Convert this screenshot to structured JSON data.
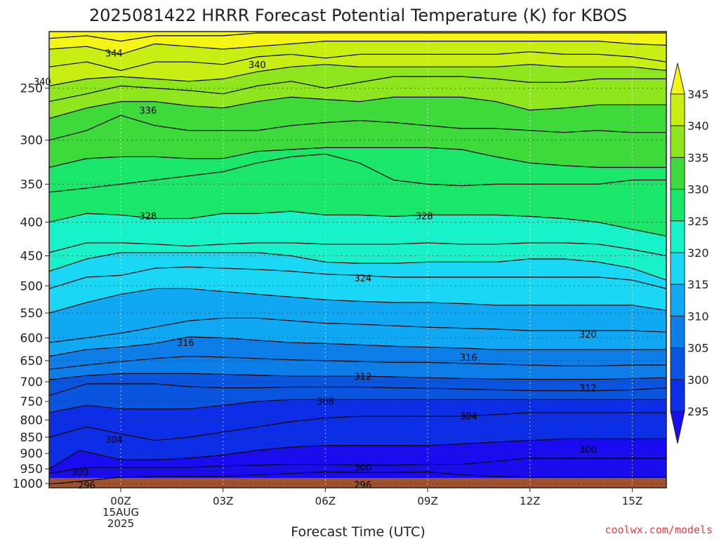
{
  "chart_data": {
    "type": "heatmap",
    "title": "2025081422 HRRR Forecast Potential Temperature (K) for KBOS",
    "xlabel": "Forecast Time (UTC)",
    "ylabel": "",
    "credit": "coolwx.com/models",
    "x_ticks": [
      {
        "hour": 0,
        "label": "00Z",
        "sub1": "15AUG",
        "sub2": "2025"
      },
      {
        "hour": 3,
        "label": "03Z"
      },
      {
        "hour": 6,
        "label": "06Z"
      },
      {
        "hour": 9,
        "label": "09Z"
      },
      {
        "hour": 12,
        "label": "12Z"
      },
      {
        "hour": 15,
        "label": "15Z"
      }
    ],
    "xlim": [
      -2.1,
      16
    ],
    "y_axis": "pressure (hPa), log scale, reversed",
    "ylim": [
      1015,
      205
    ],
    "y_ticks": [
      250,
      300,
      350,
      400,
      450,
      500,
      550,
      600,
      650,
      700,
      750,
      800,
      850,
      900,
      950,
      1000
    ],
    "colorbar": {
      "levels": [
        295,
        300,
        305,
        310,
        315,
        320,
        325,
        330,
        335,
        340,
        345
      ],
      "colors": [
        "#1a0cf0",
        "#0b2ee6",
        "#0a55e0",
        "#0d7ee8",
        "#10a8f2",
        "#19d7f5",
        "#17f2c8",
        "#1ae66a",
        "#3ed93a",
        "#8fe61e",
        "#c8ef14",
        "#f5f515"
      ],
      "extend": "both"
    },
    "ground_color": "#a0522d",
    "contour_labels": [
      {
        "value": "344",
        "hour": -0.2,
        "p": 221
      },
      {
        "value": "340",
        "hour": 4.0,
        "p": 230
      },
      {
        "value": "340",
        "hour": -2.3,
        "p": 244
      },
      {
        "value": "336",
        "hour": 0.8,
        "p": 270
      },
      {
        "value": "328",
        "hour": 0.8,
        "p": 391
      },
      {
        "value": "328",
        "hour": 8.9,
        "p": 391
      },
      {
        "value": "324",
        "hour": 7.1,
        "p": 486
      },
      {
        "value": "320",
        "hour": 13.7,
        "p": 592
      },
      {
        "value": "316",
        "hour": 1.9,
        "p": 610
      },
      {
        "value": "316",
        "hour": 10.2,
        "p": 642
      },
      {
        "value": "312",
        "hour": 7.1,
        "p": 686
      },
      {
        "value": "312",
        "hour": 13.7,
        "p": 715
      },
      {
        "value": "308",
        "hour": 6.0,
        "p": 749
      },
      {
        "value": "304",
        "hour": 10.2,
        "p": 789
      },
      {
        "value": "304",
        "hour": -0.2,
        "p": 857
      },
      {
        "value": "300",
        "hour": 13.7,
        "p": 887
      },
      {
        "value": "300",
        "hour": 7.1,
        "p": 944
      },
      {
        "value": "300",
        "hour": -1.2,
        "p": 960
      },
      {
        "value": "296",
        "hour": 7.1,
        "p": 1004
      },
      {
        "value": "296",
        "hour": -1.0,
        "p": 1005
      }
    ],
    "contours": [
      {
        "x": [
          -2.1,
          -1,
          0,
          1,
          2,
          3,
          4,
          5,
          6,
          7,
          8,
          9,
          10,
          11,
          12,
          13,
          14,
          15,
          16
        ],
        "p": [
          1002,
          990,
          978,
          975,
          975,
          975,
          970,
          965,
          960,
          962,
          962,
          960,
          970,
          975,
          978,
          978,
          978,
          978,
          978
        ]
      },
      {
        "x": [
          -2.1,
          -1,
          0,
          1,
          2,
          3,
          4,
          5,
          6,
          7,
          8,
          9,
          10,
          11,
          12,
          13,
          14,
          15,
          16
        ],
        "p": [
          965,
          945,
          945,
          945,
          945,
          940,
          938,
          935,
          935,
          938,
          938,
          935,
          935,
          925,
          915,
          915,
          915,
          915,
          915
        ]
      },
      {
        "x": [
          -2.1,
          -1.2,
          -1,
          0,
          1,
          2,
          3,
          4,
          5,
          6,
          7,
          8,
          9,
          10,
          11,
          12,
          13,
          14,
          15,
          16
        ],
        "p": [
          950,
          890,
          895,
          920,
          920,
          915,
          905,
          890,
          880,
          875,
          875,
          875,
          875,
          870,
          865,
          860,
          855,
          855,
          855,
          855
        ]
      },
      {
        "x": [
          -2.1,
          -1,
          0,
          1,
          2,
          3,
          4,
          5,
          6,
          7,
          8,
          9,
          10,
          11,
          12,
          13,
          14,
          15,
          16
        ],
        "p": [
          850,
          820,
          840,
          860,
          850,
          835,
          820,
          805,
          795,
          790,
          790,
          790,
          790,
          785,
          780,
          780,
          780,
          780,
          780
        ]
      },
      {
        "x": [
          -2.1,
          -1,
          0,
          1,
          2,
          3,
          4,
          5,
          6,
          7,
          8,
          9,
          10,
          11,
          12,
          13,
          14,
          15,
          16
        ],
        "p": [
          780,
          760,
          770,
          770,
          770,
          760,
          750,
          745,
          745,
          745,
          745,
          745,
          745,
          745,
          745,
          745,
          745,
          745,
          745
        ]
      },
      {
        "x": [
          -2.1,
          -1,
          0,
          1,
          2,
          3,
          4,
          5,
          6,
          7,
          8,
          9,
          10,
          11,
          12,
          13,
          14,
          15,
          16
        ],
        "p": [
          735,
          705,
          705,
          705,
          712,
          715,
          715,
          713,
          713,
          713,
          715,
          716,
          718,
          720,
          722,
          722,
          722,
          720,
          715
        ]
      },
      {
        "x": [
          -2.1,
          -1,
          0,
          1,
          2,
          3,
          4,
          5,
          6,
          7,
          8,
          9,
          10,
          11,
          12,
          13,
          14,
          15,
          16
        ],
        "p": [
          695,
          685,
          680,
          680,
          680,
          682,
          684,
          686,
          686,
          686,
          688,
          690,
          692,
          693,
          694,
          694,
          694,
          692,
          690
        ]
      },
      {
        "x": [
          -2.1,
          -1,
          0,
          1,
          2,
          3,
          4,
          5,
          6,
          7,
          8,
          9,
          10,
          11,
          12,
          13,
          14,
          15,
          16
        ],
        "p": [
          670,
          660,
          652,
          645,
          640,
          642,
          645,
          648,
          650,
          652,
          654,
          654,
          656,
          658,
          660,
          662,
          662,
          660,
          660
        ]
      },
      {
        "x": [
          -2.1,
          -1,
          0,
          1,
          2,
          3,
          4,
          5,
          6,
          7,
          8,
          9,
          10,
          11,
          12,
          13,
          14,
          15,
          16
        ],
        "p": [
          640,
          625,
          620,
          612,
          598,
          600,
          605,
          610,
          612,
          615,
          618,
          620,
          622,
          625,
          625,
          625,
          625,
          625,
          625
        ]
      },
      {
        "x": [
          -2.1,
          -1,
          0,
          1,
          2,
          3,
          4,
          5,
          6,
          7,
          8,
          9,
          10,
          11,
          12,
          13,
          14,
          15,
          16
        ],
        "p": [
          610,
          600,
          590,
          578,
          565,
          560,
          560,
          565,
          570,
          572,
          575,
          578,
          580,
          582,
          585,
          585,
          585,
          585,
          588
        ]
      },
      {
        "x": [
          -2.1,
          -1,
          0,
          1,
          2,
          3,
          4,
          5,
          6,
          7,
          8,
          9,
          10,
          11,
          12,
          13,
          14,
          15,
          16
        ],
        "p": [
          550,
          530,
          515,
          505,
          505,
          510,
          515,
          520,
          525,
          528,
          530,
          530,
          532,
          535,
          535,
          535,
          535,
          535,
          545
        ]
      },
      {
        "x": [
          -2.1,
          -1,
          0,
          1,
          2,
          3,
          4,
          5,
          6,
          7,
          8,
          9,
          10,
          11,
          12,
          13,
          14,
          15,
          16
        ],
        "p": [
          505,
          485,
          482,
          470,
          468,
          470,
          472,
          475,
          480,
          482,
          485,
          485,
          485,
          485,
          485,
          485,
          485,
          490,
          505
        ]
      },
      {
        "x": [
          -2.1,
          -1,
          0,
          1,
          2,
          3,
          4,
          5,
          6,
          7,
          8,
          9,
          10,
          11,
          12,
          13,
          14,
          15,
          16
        ],
        "p": [
          475,
          455,
          445,
          445,
          445,
          445,
          445,
          450,
          460,
          462,
          462,
          460,
          460,
          460,
          455,
          455,
          460,
          470,
          490
        ]
      },
      {
        "x": [
          -2.1,
          -1,
          0,
          1,
          2,
          3,
          4,
          5,
          6,
          7,
          8,
          9,
          10,
          11,
          12,
          13,
          14,
          15,
          16
        ],
        "p": [
          445,
          430,
          430,
          432,
          435,
          432,
          430,
          430,
          432,
          432,
          432,
          430,
          432,
          432,
          430,
          430,
          432,
          440,
          450
        ]
      },
      {
        "x": [
          -2.1,
          -1,
          0,
          1,
          2,
          3,
          4,
          5,
          6,
          7,
          8,
          9,
          10,
          11,
          12,
          13,
          14,
          15,
          16
        ],
        "p": [
          400,
          388,
          390,
          395,
          395,
          388,
          388,
          385,
          390,
          390,
          392,
          390,
          390,
          390,
          392,
          395,
          400,
          410,
          420
        ]
      },
      {
        "x": [
          -2.1,
          -1,
          0,
          1,
          2,
          3,
          4,
          5,
          6,
          7,
          8,
          9,
          10,
          11,
          12,
          13,
          14,
          15,
          16
        ],
        "p": [
          360,
          355,
          350,
          345,
          340,
          335,
          325,
          318,
          315,
          325,
          345,
          350,
          352,
          350,
          350,
          350,
          350,
          345,
          345
        ]
      },
      {
        "x": [
          -2.1,
          -1,
          0,
          1,
          2,
          3,
          4,
          5,
          6,
          7,
          8,
          9,
          10,
          11,
          12,
          13,
          14,
          15,
          16
        ],
        "p": [
          330,
          320,
          318,
          318,
          320,
          320,
          312,
          310,
          308,
          308,
          308,
          308,
          310,
          318,
          325,
          328,
          330,
          330,
          330
        ]
      },
      {
        "x": [
          -2.1,
          -1,
          0,
          1,
          2,
          3,
          4,
          5,
          6,
          7,
          8,
          9,
          10,
          11,
          12,
          13,
          14,
          15,
          16
        ],
        "p": [
          300,
          290,
          275,
          285,
          290,
          290,
          290,
          285,
          282,
          280,
          282,
          285,
          288,
          288,
          290,
          292,
          290,
          292,
          292
        ]
      },
      {
        "x": [
          -2.1,
          -1,
          0,
          1,
          2,
          3,
          4,
          5,
          6,
          7,
          8,
          9,
          10,
          11,
          12,
          13,
          14,
          15,
          16
        ],
        "p": [
          278,
          268,
          262,
          262,
          266,
          268,
          262,
          258,
          260,
          262,
          258,
          258,
          258,
          262,
          270,
          268,
          265,
          265,
          265
        ]
      },
      {
        "x": [
          -2.1,
          -1,
          0,
          1,
          2,
          3,
          4,
          5,
          6,
          7,
          8,
          9,
          10,
          11,
          12,
          13,
          14,
          15,
          16
        ],
        "p": [
          262,
          255,
          248,
          250,
          252,
          255,
          248,
          244,
          250,
          245,
          240,
          240,
          240,
          242,
          245,
          245,
          242,
          242,
          242
        ]
      },
      {
        "x": [
          -2.1,
          -1,
          0,
          1,
          2,
          3,
          4,
          5,
          6,
          7,
          8,
          9,
          10,
          11,
          12,
          13,
          14,
          15,
          16
        ],
        "p": [
          248,
          242,
          240,
          242,
          244,
          242,
          236,
          232,
          230,
          232,
          232,
          232,
          232,
          232,
          230,
          232,
          232,
          232,
          235
        ]
      },
      {
        "x": [
          -2.1,
          -1,
          0,
          1,
          2,
          3,
          4,
          5,
          6,
          7,
          8,
          9,
          10,
          11,
          12,
          13,
          14,
          15,
          16
        ],
        "p": [
          232,
          228,
          235,
          228,
          228,
          230,
          224,
          222,
          225,
          222,
          222,
          222,
          222,
          222,
          220,
          222,
          222,
          224,
          228
        ]
      },
      {
        "x": [
          -2.1,
          -1,
          0,
          1,
          2,
          3,
          4,
          5,
          6,
          7,
          8,
          9,
          10,
          11,
          12,
          13,
          14,
          15,
          16
        ],
        "p": [
          218,
          216,
          222,
          214,
          216,
          218,
          216,
          214,
          212,
          212,
          212,
          212,
          212,
          212,
          212,
          212,
          212,
          214,
          215
        ]
      },
      {
        "x": [
          -2.1,
          -1,
          0,
          1,
          2,
          3,
          4,
          5,
          6,
          7,
          8,
          9,
          10,
          11,
          12,
          13,
          14,
          15,
          16
        ],
        "p": [
          210,
          208,
          212,
          208,
          208,
          208,
          206,
          206,
          206,
          206,
          206,
          206,
          206,
          206,
          206,
          206,
          206,
          206,
          206
        ]
      }
    ]
  }
}
